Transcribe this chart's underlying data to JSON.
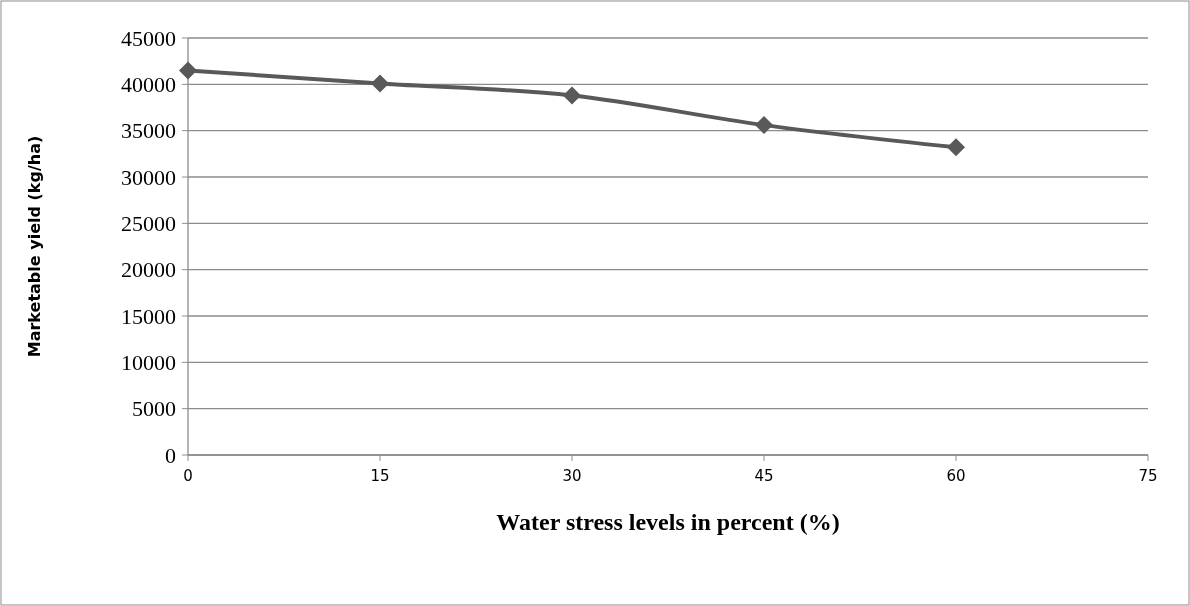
{
  "chart_data": {
    "type": "line",
    "xlabel": "Water stress levels  in percent (%)",
    "ylabel": "Marketable  yield (kg/ha)",
    "x": [
      0,
      15,
      30,
      45,
      60
    ],
    "series": [
      {
        "color": "#595959",
        "values": [
          41500,
          40100,
          38800,
          35600,
          33200
        ]
      }
    ],
    "xlim": [
      0,
      75
    ],
    "xticks": [
      0,
      15,
      30,
      45,
      60,
      75
    ],
    "ylim": [
      0,
      45000
    ],
    "yticks": [
      0,
      5000,
      10000,
      15000,
      20000,
      25000,
      30000,
      35000,
      40000,
      45000
    ],
    "grid": "y",
    "marker": "diamond",
    "line_style": "solid"
  }
}
